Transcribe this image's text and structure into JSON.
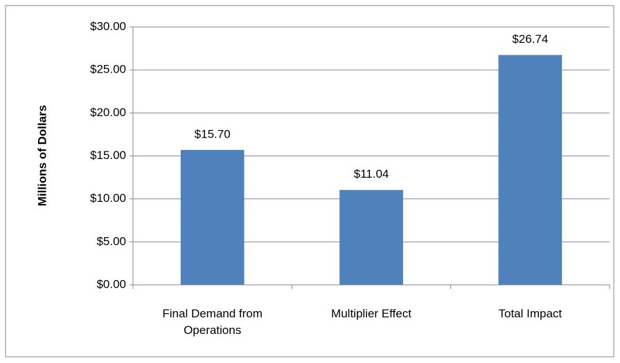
{
  "chart_data": {
    "type": "bar",
    "y_label": "Millions of Dollars",
    "categories": [
      "Final Demand from Operations",
      "Multiplier Effect",
      "Total Impact"
    ],
    "values": [
      15.7,
      11.04,
      26.74
    ],
    "value_labels": [
      "$15.70",
      "$11.04",
      "$26.74"
    ],
    "color": "#4f81bd",
    "ylim": [
      0,
      30
    ],
    "yticks": [
      {
        "value": 0,
        "label": "$0.00"
      },
      {
        "value": 5,
        "label": "$5.00"
      },
      {
        "value": 10,
        "label": "$10.00"
      },
      {
        "value": 15,
        "label": "$15.00"
      },
      {
        "value": 20,
        "label": "$20.00"
      },
      {
        "value": 25,
        "label": "$25.00"
      },
      {
        "value": 30,
        "label": "$30.00"
      }
    ],
    "grid": true
  }
}
